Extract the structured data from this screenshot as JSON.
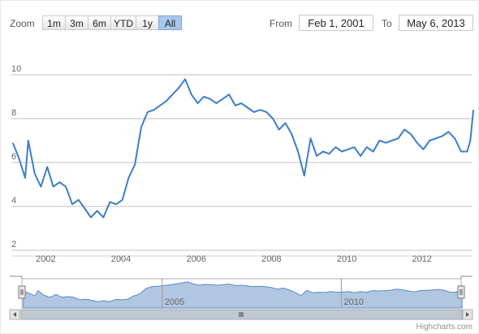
{
  "range_selector": {
    "zoom_label": "Zoom",
    "buttons": [
      "1m",
      "3m",
      "6m",
      "YTD",
      "1y",
      "All"
    ],
    "selected": "All",
    "from_label": "From",
    "from_value": "Feb 1, 2001",
    "to_label": "To",
    "to_value": "May 6, 2013"
  },
  "credits": "Highcharts.com",
  "chart_data": {
    "type": "line",
    "title": "",
    "xlabel": "",
    "ylabel": "",
    "xlim": [
      "2001-02-01",
      "2013-05-06"
    ],
    "ylim": [
      2,
      10
    ],
    "y_ticks": [
      2,
      4,
      6,
      8,
      10
    ],
    "x_ticks": [
      "2002",
      "2004",
      "2006",
      "2008",
      "2010",
      "2012"
    ],
    "navigator_x_ticks": [
      "2005",
      "2010"
    ],
    "grid": true,
    "color": "#3d7dca",
    "navigator_fill": "#b1c6e0",
    "x": [
      "2001-02",
      "2001-04",
      "2001-06",
      "2001-07",
      "2001-09",
      "2001-11",
      "2002-01",
      "2002-03",
      "2002-05",
      "2002-07",
      "2002-09",
      "2002-11",
      "2003-01",
      "2003-03",
      "2003-05",
      "2003-07",
      "2003-09",
      "2003-11",
      "2004-01",
      "2004-03",
      "2004-05",
      "2004-07",
      "2004-09",
      "2004-11",
      "2005-01",
      "2005-03",
      "2005-05",
      "2005-07",
      "2005-09",
      "2005-11",
      "2006-01",
      "2006-03",
      "2006-05",
      "2006-07",
      "2006-09",
      "2006-11",
      "2007-01",
      "2007-03",
      "2007-05",
      "2007-07",
      "2007-09",
      "2007-11",
      "2008-01",
      "2008-03",
      "2008-05",
      "2008-07",
      "2008-09",
      "2008-11",
      "2009-01",
      "2009-03",
      "2009-05",
      "2009-07",
      "2009-09",
      "2009-11",
      "2010-01",
      "2010-03",
      "2010-05",
      "2010-07",
      "2010-09",
      "2010-11",
      "2011-01",
      "2011-03",
      "2011-05",
      "2011-07",
      "2011-09",
      "2011-11",
      "2012-01",
      "2012-03",
      "2012-05",
      "2012-07",
      "2012-09",
      "2012-11",
      "2013-01",
      "2013-03",
      "2013-04",
      "2013-05"
    ],
    "values": [
      6.9,
      6.2,
      5.3,
      7.0,
      5.5,
      4.9,
      5.8,
      4.9,
      5.1,
      4.9,
      4.1,
      4.3,
      3.9,
      3.5,
      3.8,
      3.5,
      4.2,
      4.1,
      4.3,
      5.3,
      5.9,
      7.6,
      8.3,
      8.4,
      8.6,
      8.8,
      9.1,
      9.4,
      9.8,
      9.1,
      8.7,
      9.0,
      8.9,
      8.7,
      8.9,
      9.1,
      8.6,
      8.7,
      8.5,
      8.3,
      8.4,
      8.3,
      8.0,
      7.5,
      7.8,
      7.3,
      6.5,
      5.4,
      7.1,
      6.3,
      6.5,
      6.4,
      6.7,
      6.5,
      6.6,
      6.7,
      6.3,
      6.7,
      6.5,
      7.0,
      6.9,
      7.0,
      7.1,
      7.5,
      7.3,
      6.9,
      6.6,
      7.0,
      7.1,
      7.2,
      7.4,
      7.1,
      6.5,
      6.5,
      7.0,
      8.4
    ]
  }
}
